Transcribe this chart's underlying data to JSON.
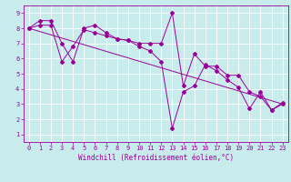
{
  "title": "",
  "xlabel": "Windchill (Refroidissement éolien,°C)",
  "ylabel": "",
  "background_color": "#c8ecec",
  "grid_color": "#ffffff",
  "line_color": "#990099",
  "xlim": [
    -0.5,
    23.5
  ],
  "ylim": [
    0.5,
    9.5
  ],
  "xticks": [
    0,
    1,
    2,
    3,
    4,
    5,
    6,
    7,
    8,
    9,
    10,
    11,
    12,
    13,
    14,
    15,
    16,
    17,
    18,
    19,
    20,
    21,
    22,
    23
  ],
  "yticks": [
    1,
    2,
    3,
    4,
    5,
    6,
    7,
    8,
    9
  ],
  "series1_x": [
    0,
    1,
    2,
    3,
    4,
    5,
    6,
    7,
    8,
    9,
    10,
    11,
    12,
    13,
    14,
    15,
    16,
    17,
    18,
    19,
    20,
    21,
    22,
    23
  ],
  "series1_y": [
    8.0,
    8.5,
    8.5,
    7.0,
    5.8,
    8.0,
    8.2,
    7.7,
    7.3,
    7.2,
    7.0,
    7.0,
    7.0,
    9.0,
    4.2,
    6.3,
    5.5,
    5.5,
    4.9,
    4.9,
    3.8,
    3.5,
    2.6,
    3.0
  ],
  "series2_x": [
    0,
    1,
    2,
    3,
    4,
    5,
    6,
    7,
    8,
    9,
    10,
    11,
    12,
    13,
    14,
    15,
    16,
    17,
    18,
    19,
    20,
    21,
    22,
    23
  ],
  "series2_y": [
    8.0,
    8.2,
    8.2,
    5.8,
    6.8,
    7.9,
    7.7,
    7.5,
    7.3,
    7.2,
    6.8,
    6.5,
    5.8,
    1.4,
    3.8,
    4.2,
    5.6,
    5.2,
    4.6,
    4.1,
    2.7,
    3.8,
    2.6,
    3.1
  ],
  "series3_x": [
    0,
    23
  ],
  "series3_y": [
    8.0,
    3.0
  ],
  "tick_fontsize": 5,
  "xlabel_fontsize": 5.5,
  "marker_size": 2.0,
  "line_width": 0.7
}
